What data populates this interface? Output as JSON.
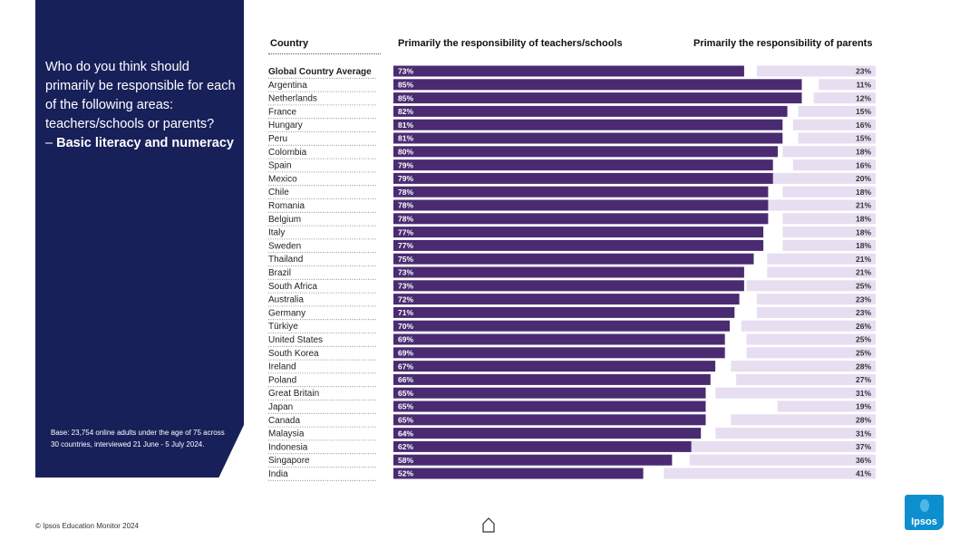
{
  "side_panel": {
    "question": "Who do you think should primarily be responsible for each of the following areas: teachers/schools or parents?",
    "topic_prefix": "– ",
    "topic": "Basic literacy and numeracy",
    "base_note": "Base: 23,754 online adults under the age of 75 across 30 countries, interviewed 21 June - 5 July 2024."
  },
  "headers": {
    "country": "Country",
    "teachers": "Primarily the responsibility of teachers/schools",
    "parents": "Primarily the responsibility of parents"
  },
  "footer": {
    "copyright": "© Ipsos Education Monitor 2024",
    "logo_text": "Ipsos"
  },
  "colors": {
    "panel": "#18205a",
    "teachers_bar": "#4a2b72",
    "parents_bar": "#e7def1",
    "logo": "#0d8fcf"
  },
  "chart_data": {
    "type": "bar",
    "orientation": "horizontal-diverging",
    "series": [
      {
        "name": "Primarily the responsibility of teachers/schools",
        "unit": "%",
        "values": [
          73,
          85,
          85,
          82,
          81,
          81,
          80,
          79,
          79,
          78,
          78,
          78,
          77,
          77,
          75,
          73,
          73,
          72,
          71,
          70,
          69,
          69,
          67,
          66,
          65,
          65,
          65,
          64,
          62,
          58,
          52
        ]
      },
      {
        "name": "Primarily the responsibility of parents",
        "unit": "%",
        "values": [
          23,
          11,
          12,
          15,
          16,
          15,
          18,
          16,
          20,
          18,
          21,
          18,
          18,
          18,
          21,
          21,
          25,
          23,
          23,
          26,
          25,
          25,
          28,
          27,
          31,
          19,
          28,
          31,
          37,
          36,
          41
        ]
      }
    ],
    "categories": [
      "Global Country Average",
      "Argentina",
      "Netherlands",
      "France",
      "Hungary",
      "Peru",
      "Colombia",
      "Spain",
      "Mexico",
      "Chile",
      "Romania",
      "Belgium",
      "Italy",
      "Sweden",
      "Thailand",
      "Brazil",
      "South Africa",
      "Australia",
      "Germany",
      "Türkiye",
      "United States",
      "South Korea",
      "Ireland",
      "Poland",
      "Great Britain",
      "Japan",
      "Canada",
      "Malaysia",
      "Indonesia",
      "Singapore",
      "India"
    ],
    "highlight_category": "Global Country Average",
    "value_suffix": "%",
    "xlim": [
      0,
      100
    ]
  }
}
